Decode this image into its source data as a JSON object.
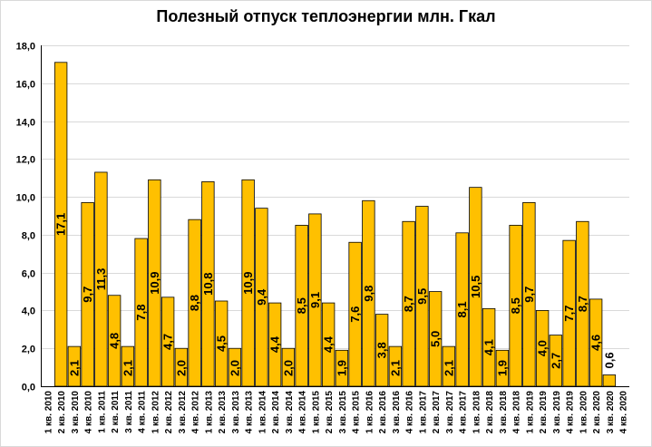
{
  "chart_data": {
    "type": "bar",
    "title": "Полезный отпуск теплоэнергии млн. Гкал",
    "xlabel": "",
    "ylabel": "",
    "ylim": [
      0,
      18
    ],
    "ytick_step": 2,
    "ytick_labels": [
      "0,0",
      "2,0",
      "4,0",
      "6,0",
      "8,0",
      "10,0",
      "12,0",
      "14,0",
      "16,0",
      "18,0"
    ],
    "grid": true,
    "legend": "none",
    "bar_color": "#FFC000",
    "bar_edge_color": "#000000",
    "grid_color": "#d9d9d9",
    "categories": [
      "1 кв. 2010",
      "2 кв. 2010",
      "3 кв. 2010",
      "4 кв. 2010",
      "1 кв. 2011",
      "2 кв. 2011",
      "3 кв. 2011",
      "4 кв. 2011",
      "1 кв. 2012",
      "2 кв. 2012",
      "3 кв. 2012",
      "4 кв. 2012",
      "1 кв. 2013",
      "2 кв. 2013",
      "3 кв. 2013",
      "4 кв. 2013",
      "1 кв. 2014",
      "2 кв. 2014",
      "3 кв. 2014",
      "4 кв. 2014",
      "1 кв. 2015",
      "2 кв. 2015",
      "3 кв. 2015",
      "4 кв. 2015",
      "1 кв. 2016",
      "2 кв. 2016",
      "3 кв. 2016",
      "4 кв. 2016",
      "1 кв. 2017",
      "2 кв. 2017",
      "3 кв. 2017",
      "4 кв. 2017",
      "1 кв. 2018",
      "2 кв. 2018",
      "3 кв. 2018",
      "4 кв. 2018",
      "1 кв. 2019",
      "2 кв. 2019",
      "3 кв. 2019",
      "4 кв. 2019",
      "1 кв. 2020",
      "2 кв. 2020",
      "3 кв. 2020",
      "4 кв. 2020"
    ],
    "values": [
      null,
      17.1,
      2.1,
      9.7,
      11.3,
      4.8,
      2.1,
      7.8,
      10.9,
      4.7,
      2.0,
      8.8,
      10.8,
      4.5,
      2.0,
      10.9,
      9.4,
      4.4,
      2.0,
      8.5,
      9.1,
      4.4,
      1.9,
      7.6,
      9.8,
      3.8,
      2.1,
      8.7,
      9.5,
      5.0,
      2.1,
      8.1,
      10.5,
      4.1,
      1.9,
      8.5,
      9.7,
      4.0,
      2.7,
      7.7,
      8.7,
      4.6,
      0.6,
      null
    ],
    "data_labels": [
      "",
      "17,1",
      "2,1",
      "9,7",
      "11,3",
      "4,8",
      "2,1",
      "7,8",
      "10,9",
      "4,7",
      "2,0",
      "8,8",
      "10,8",
      "4,5",
      "2,0",
      "10,9",
      "9,4",
      "4,4",
      "2,0",
      "8,5",
      "9,1",
      "4,4",
      "1,9",
      "7,6",
      "9,8",
      "3,8",
      "2,1",
      "8,7",
      "9,5",
      "5,0",
      "2,1",
      "8,1",
      "10,5",
      "4,1",
      "1,9",
      "8,5",
      "9,7",
      "4,0",
      "2,7",
      "7,7",
      "8,7",
      "4,6",
      "0,6",
      ""
    ]
  }
}
